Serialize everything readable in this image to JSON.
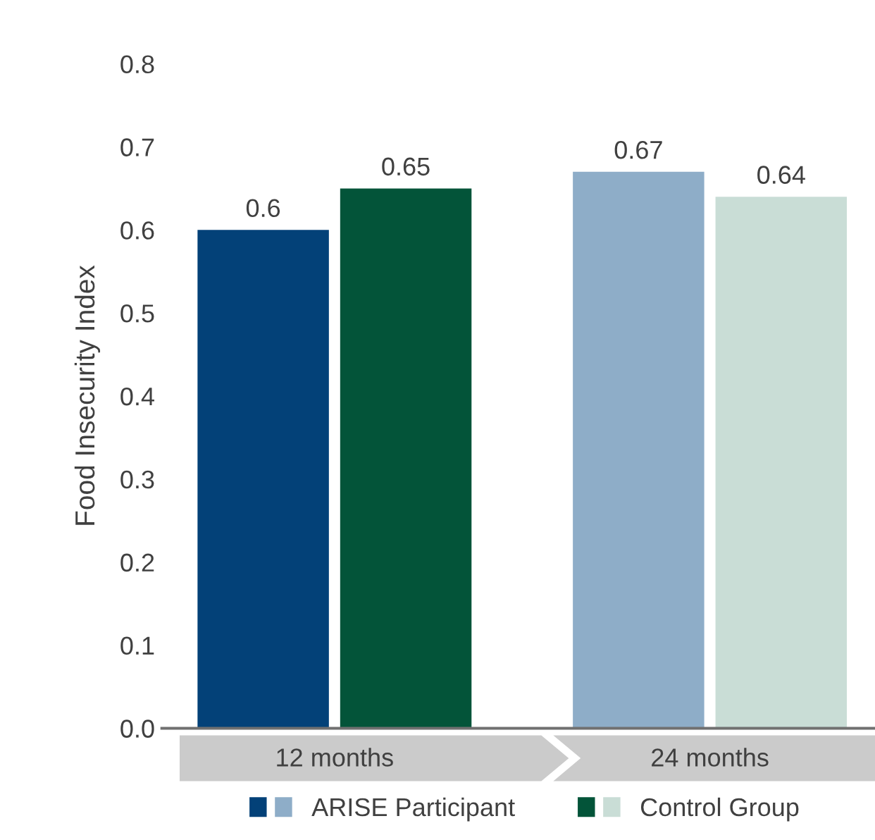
{
  "chart_data": {
    "type": "bar",
    "ylabel": "Food Insecurity Index",
    "categories": [
      "12 months",
      "24 months"
    ],
    "series": [
      {
        "name": "ARISE Participant",
        "colors": [
          "#034178",
          "#8eadc8"
        ],
        "values": [
          0.6,
          0.67
        ]
      },
      {
        "name": "Control Group",
        "colors": [
          "#035439",
          "#c9ddd6"
        ],
        "values": [
          0.65,
          0.64
        ]
      }
    ],
    "ylim": [
      0,
      0.8
    ],
    "yticks": [
      {
        "value": 0,
        "label": "0.0"
      },
      0.1,
      0.2,
      0.3,
      0.4,
      0.5,
      0.6,
      0.7,
      0.8
    ],
    "data_labels": true,
    "grid": false,
    "legend": "bottom"
  }
}
